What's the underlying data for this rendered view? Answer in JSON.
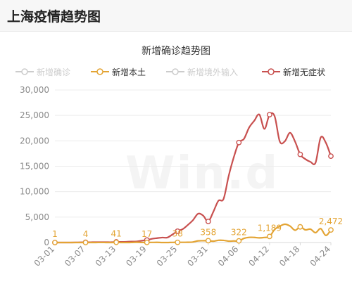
{
  "header": {
    "title": "上海疫情趋势图"
  },
  "watermark": "Win.d",
  "chart_data": {
    "type": "line",
    "title": "新增确诊趋势图",
    "colors": {
      "confirmed": "#cccccc",
      "local": "#e3a434",
      "overseas": "#cccccc",
      "asymptomatic": "#c8504f"
    },
    "legend": [
      {
        "name": "新增确诊",
        "color": "#cccccc",
        "key": "confirmed"
      },
      {
        "name": "新增本土",
        "color": "#e3a434",
        "key": "local"
      },
      {
        "name": "新增境外输入",
        "color": "#cccccc",
        "key": "overseas"
      },
      {
        "name": "新增无症状",
        "color": "#c8504f",
        "key": "asymptomatic"
      }
    ],
    "legend_position": "top",
    "ylim": [
      0,
      30000
    ],
    "yticks": [
      "0",
      "5,000",
      "10,000",
      "15,000",
      "20,000",
      "25,000",
      "30,000"
    ],
    "x_tick_labels": [
      "03-01",
      "03-07",
      "03-13",
      "03-19",
      "03-25",
      "03-31",
      "04-06",
      "04-12",
      "04-18",
      "04-24"
    ],
    "x": [
      "03-01",
      "03-02",
      "03-03",
      "03-04",
      "03-05",
      "03-06",
      "03-07",
      "03-08",
      "03-09",
      "03-10",
      "03-11",
      "03-12",
      "03-13",
      "03-14",
      "03-15",
      "03-16",
      "03-17",
      "03-18",
      "03-19",
      "03-20",
      "03-21",
      "03-22",
      "03-23",
      "03-24",
      "03-25",
      "03-26",
      "03-27",
      "03-28",
      "03-29",
      "03-30",
      "03-31",
      "04-01",
      "04-02",
      "04-03",
      "04-04",
      "04-05",
      "04-06",
      "04-07",
      "04-08",
      "04-09",
      "04-10",
      "04-11",
      "04-12",
      "04-13",
      "04-14",
      "04-15",
      "04-16",
      "04-17",
      "04-18",
      "04-19",
      "04-20",
      "04-21",
      "04-22",
      "04-23",
      "04-24"
    ],
    "series": [
      {
        "name": "新增本土",
        "key": "local",
        "values": [
          1,
          2,
          1,
          3,
          3,
          2,
          4,
          3,
          4,
          10,
          5,
          1,
          41,
          1,
          5,
          8,
          57,
          8,
          17,
          24,
          31,
          4,
          4,
          29,
          38,
          45,
          50,
          96,
          326,
          355,
          358,
          260,
          438,
          425,
          268,
          311,
          322,
          824,
          1015,
          1006,
          914,
          994,
          1189,
          2573,
          3200,
          3590,
          3238,
          2417,
          3084,
          2494,
          2634,
          1931,
          2736,
          1401,
          2472
        ],
        "data_labels": [
          {
            "x": "03-01",
            "value": "1"
          },
          {
            "x": "03-07",
            "value": "4"
          },
          {
            "x": "03-13",
            "value": "41"
          },
          {
            "x": "03-19",
            "value": "17"
          },
          {
            "x": "03-25",
            "value": "38"
          },
          {
            "x": "03-31",
            "value": "358"
          },
          {
            "x": "04-06",
            "value": "322"
          },
          {
            "x": "04-12",
            "value": "1,189"
          },
          {
            "x": "04-24",
            "value": "2,472"
          }
        ]
      },
      {
        "name": "新增无症状",
        "key": "asymptomatic",
        "values": [
          1,
          1,
          2,
          3,
          14,
          45,
          51,
          62,
          72,
          64,
          78,
          64,
          128,
          130,
          150,
          197,
          203,
          366,
          492,
          734,
          865,
          977,
          979,
          1580,
          2231,
          2631,
          3450,
          4381,
          5656,
          5298,
          4144,
          6051,
          8226,
          8581,
          13086,
          16766,
          19660,
          20398,
          22609,
          23937,
          25173,
          22348,
          25141,
          24820,
          19872,
          19923,
          21582,
          19831,
          17332,
          16407,
          15861,
          15698,
          20634,
          19657,
          16983
        ]
      }
    ]
  }
}
